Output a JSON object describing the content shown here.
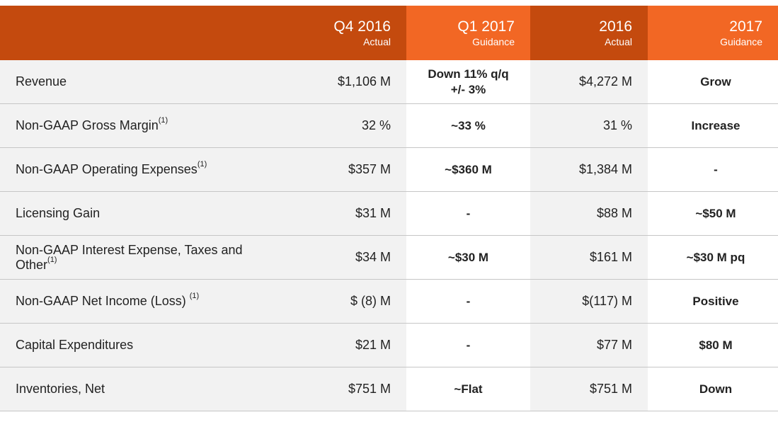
{
  "header": {
    "columns": [
      {
        "main": "Q4 2016",
        "sub": "Actual"
      },
      {
        "main": "Q1 2017",
        "sub": "Guidance"
      },
      {
        "main": "2016",
        "sub": "Actual"
      },
      {
        "main": "2017",
        "sub": "Guidance"
      }
    ]
  },
  "rows": [
    {
      "label": "Revenue",
      "sup": "",
      "q4_2016": "$1,106 M",
      "q1_2017_line1": "Down 11% q/q",
      "q1_2017_line2": "+/- 3%",
      "fy2016": "$4,272 M",
      "fy2017": "Grow"
    },
    {
      "label": "Non-GAAP Gross Margin",
      "sup": "(1)",
      "q4_2016": "32 %",
      "q1_2017_line1": "~33 %",
      "q1_2017_line2": "",
      "fy2016": "31 %",
      "fy2017": "Increase"
    },
    {
      "label": "Non-GAAP Operating Expenses",
      "sup": "(1)",
      "q4_2016": "$357 M",
      "q1_2017_line1": "~$360 M",
      "q1_2017_line2": "",
      "fy2016": "$1,384 M",
      "fy2017": "-"
    },
    {
      "label": "Licensing Gain",
      "sup": "",
      "q4_2016": "$31 M",
      "q1_2017_line1": "-",
      "q1_2017_line2": "",
      "fy2016": "$88 M",
      "fy2017": "~$50 M"
    },
    {
      "label": "Non-GAAP Interest Expense, Taxes and Other",
      "sup": "(1)",
      "q4_2016": "$34 M",
      "q1_2017_line1": "~$30 M",
      "q1_2017_line2": "",
      "fy2016": "$161 M",
      "fy2017": "~$30 M pq"
    },
    {
      "label": "Non-GAAP Net Income (Loss) ",
      "sup": "(1)",
      "q4_2016": "$ (8) M",
      "q1_2017_line1": "-",
      "q1_2017_line2": "",
      "fy2016": "$(117) M",
      "fy2017": "Positive"
    },
    {
      "label": "Capital Expenditures",
      "sup": "",
      "q4_2016": "$21 M",
      "q1_2017_line1": "-",
      "q1_2017_line2": "",
      "fy2016": "$77 M",
      "fy2017": "$80 M"
    },
    {
      "label": "Inventories, Net",
      "sup": "",
      "q4_2016": "$751 M",
      "q1_2017_line1": "~Flat",
      "q1_2017_line2": "",
      "fy2016": "$751 M",
      "fy2017": "Down"
    }
  ],
  "colors": {
    "header_dark": "#c44a0e",
    "header_light": "#f26724",
    "row_shade": "#f2f2f2"
  }
}
